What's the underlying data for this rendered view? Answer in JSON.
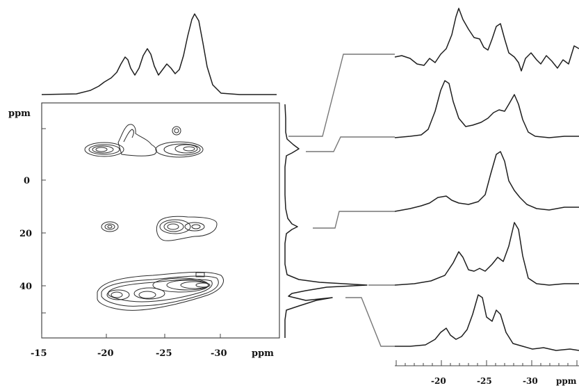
{
  "axis": {
    "y_unit": "ppm",
    "x_unit": "ppm",
    "y_ticks": [
      "0",
      "20",
      "40"
    ],
    "x_ticks": [
      "-15",
      "-20",
      "-25",
      "-30"
    ],
    "x_ticks_right": [
      "-20",
      "-25",
      "-30"
    ],
    "x_unit_right": "ppm"
  },
  "colors": {
    "trace": "#1e1e1e",
    "connector": "#777777",
    "contour": "#2a2a2a"
  },
  "chart_data": {
    "type": "2D NMR contour plot with 1D projections and extracted slices",
    "x_range_ppm": [
      -15,
      -32
    ],
    "y_range_ppm": [
      -20,
      60
    ],
    "contour_regions": [
      {
        "x_ppm": [
          -19,
          -24
        ],
        "y_ppm": -10
      },
      {
        "x_ppm": [
          -24,
          -29
        ],
        "y_ppm": -10
      },
      {
        "x_ppm": [
          -19.5,
          -20.5
        ],
        "y_ppm": 18
      },
      {
        "x_ppm": [
          -25,
          -29
        ],
        "y_ppm": 18
      },
      {
        "x_ppm": [
          -18,
          -29
        ],
        "y_ppm": [
          40,
          46
        ]
      }
    ],
    "slices_y_ppm": [
      -10,
      -10,
      18,
      40,
      44
    ],
    "slice_count": 5
  }
}
